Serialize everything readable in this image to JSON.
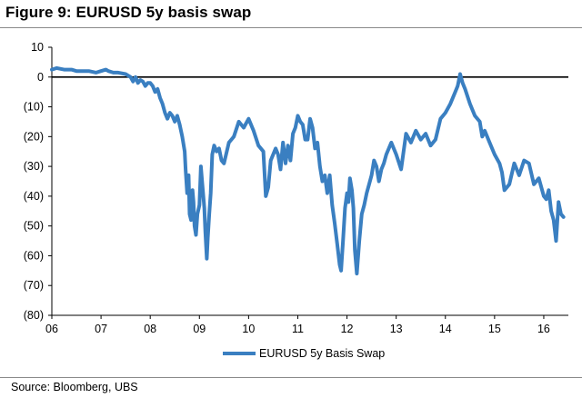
{
  "title": "Figure 9: EURUSD 5y basis swap",
  "source": "Source:  Bloomberg, UBS",
  "chart_data": {
    "type": "line",
    "title": "",
    "xlabel": "",
    "ylabel": "",
    "x_tick_labels": [
      "06",
      "07",
      "08",
      "09",
      "10",
      "11",
      "12",
      "13",
      "14",
      "15",
      "16"
    ],
    "y_tick_values": [
      10,
      0,
      -10,
      -20,
      -30,
      -40,
      -50,
      -60,
      -70,
      -80
    ],
    "y_tick_labels": [
      "10",
      "0",
      "(10)",
      "(20)",
      "(30)",
      "(40)",
      "(50)",
      "(60)",
      "(70)",
      "(80)"
    ],
    "xlim": [
      2006.0,
      2016.5
    ],
    "ylim": [
      -80,
      10
    ],
    "grid": false,
    "zero_line": true,
    "legend_position": "bottom-center",
    "series": [
      {
        "name": "EURUSD 5y Basis Swap",
        "color": "#3a7fc1",
        "x": [
          2006.0,
          2006.1,
          2006.25,
          2006.4,
          2006.5,
          2006.6,
          2006.75,
          2006.9,
          2007.0,
          2007.1,
          2007.15,
          2007.25,
          2007.35,
          2007.5,
          2007.6,
          2007.65,
          2007.7,
          2007.75,
          2007.8,
          2007.85,
          2007.9,
          2007.95,
          2008.0,
          2008.05,
          2008.1,
          2008.15,
          2008.2,
          2008.25,
          2008.3,
          2008.35,
          2008.4,
          2008.45,
          2008.5,
          2008.55,
          2008.6,
          2008.65,
          2008.7,
          2008.72,
          2008.75,
          2008.78,
          2008.8,
          2008.83,
          2008.86,
          2008.88,
          2008.9,
          2008.93,
          2008.96,
          2009.0,
          2009.03,
          2009.06,
          2009.1,
          2009.12,
          2009.15,
          2009.17,
          2009.2,
          2009.23,
          2009.26,
          2009.3,
          2009.35,
          2009.4,
          2009.45,
          2009.5,
          2009.6,
          2009.7,
          2009.8,
          2009.9,
          2010.0,
          2010.1,
          2010.2,
          2010.3,
          2010.35,
          2010.4,
          2010.45,
          2010.5,
          2010.55,
          2010.6,
          2010.65,
          2010.7,
          2010.75,
          2010.8,
          2010.85,
          2010.9,
          2010.95,
          2011.0,
          2011.05,
          2011.1,
          2011.15,
          2011.2,
          2011.25,
          2011.3,
          2011.35,
          2011.4,
          2011.45,
          2011.5,
          2011.55,
          2011.6,
          2011.65,
          2011.7,
          2011.75,
          2011.8,
          2011.85,
          2011.88,
          2011.92,
          2011.96,
          2012.0,
          2012.03,
          2012.06,
          2012.1,
          2012.13,
          2012.16,
          2012.2,
          2012.25,
          2012.3,
          2012.35,
          2012.4,
          2012.45,
          2012.5,
          2012.55,
          2012.6,
          2012.65,
          2012.7,
          2012.75,
          2012.8,
          2012.9,
          2013.0,
          2013.1,
          2013.2,
          2013.3,
          2013.4,
          2013.5,
          2013.6,
          2013.7,
          2013.8,
          2013.9,
          2014.0,
          2014.1,
          2014.2,
          2014.25,
          2014.3,
          2014.35,
          2014.4,
          2014.5,
          2014.6,
          2014.7,
          2014.75,
          2014.8,
          2014.9,
          2015.0,
          2015.1,
          2015.15,
          2015.2,
          2015.3,
          2015.4,
          2015.5,
          2015.6,
          2015.7,
          2015.8,
          2015.9,
          2016.0,
          2016.05,
          2016.1,
          2016.15,
          2016.2,
          2016.25,
          2016.3,
          2016.35,
          2016.4
        ],
        "y": [
          2.5,
          3,
          2.5,
          2.5,
          2,
          2,
          2,
          1.5,
          2,
          2.5,
          2,
          1.5,
          1.5,
          1,
          0,
          -1.5,
          0,
          -2,
          -1,
          -1.5,
          -3,
          -2,
          -2,
          -3,
          -5,
          -4,
          -7,
          -9,
          -12,
          -14,
          -12,
          -13,
          -15,
          -13,
          -16,
          -20,
          -25,
          -31,
          -39,
          -33,
          -46,
          -48,
          -38,
          -42,
          -50,
          -53,
          -46,
          -43,
          -30,
          -36,
          -44,
          -52,
          -61,
          -54,
          -46,
          -39,
          -26,
          -23,
          -25,
          -24,
          -28,
          -29,
          -22,
          -20,
          -15,
          -17,
          -14,
          -18,
          -23,
          -25,
          -40,
          -37,
          -28,
          -26,
          -24,
          -26,
          -31,
          -22,
          -29,
          -23,
          -28,
          -19,
          -17,
          -13,
          -15,
          -16,
          -21,
          -21,
          -14,
          -17,
          -24,
          -22,
          -30,
          -35,
          -33,
          -39,
          -33,
          -43,
          -49,
          -56,
          -63,
          -65,
          -55,
          -44,
          -39,
          -42,
          -34,
          -38,
          -44,
          -58,
          -66,
          -55,
          -46,
          -43,
          -39,
          -36,
          -33,
          -28,
          -30,
          -35,
          -31,
          -29,
          -26,
          -22,
          -26,
          -31,
          -19,
          -22,
          -18,
          -21,
          -19,
          -23,
          -21,
          -14,
          -12,
          -9,
          -5,
          -3,
          1,
          -2,
          -4,
          -9,
          -13,
          -15,
          -20,
          -18,
          -22,
          -26,
          -29,
          -32,
          -38,
          -36,
          -29,
          -33,
          -28,
          -29,
          -36,
          -34,
          -40,
          -41,
          -38,
          -45,
          -48,
          -55,
          -42,
          -46,
          -47
        ]
      }
    ]
  }
}
